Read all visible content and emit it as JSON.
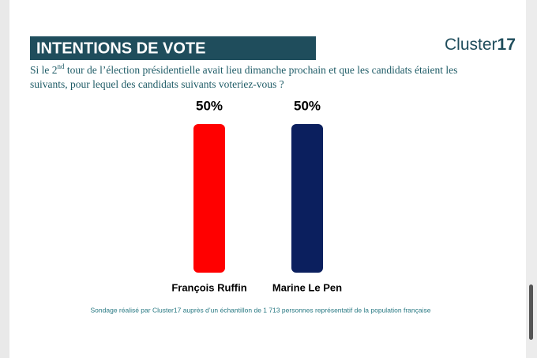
{
  "chart_data": {
    "type": "bar",
    "title": "INTENTIONS DE VOTE",
    "subtitle": [
      "Si le 2",
      "nd",
      " tour de l’élection présidentielle avait lieu dimanche prochain et que les candidats étaient les",
      "suivants, pour lequel des candidats suivants voteriez-vous ?"
    ],
    "brand": [
      "Cluster",
      "17"
    ],
    "categories": [
      "François Ruffin",
      "Marine Le Pen"
    ],
    "values": [
      50,
      50
    ],
    "value_labels": [
      "50%",
      "50%"
    ],
    "colors": [
      "#ff0000",
      "#0b1f5e"
    ],
    "source": "Sondage réalisé par Cluster17 auprès d’un échantillon de 1 713 personnes représentatif de la population française"
  }
}
